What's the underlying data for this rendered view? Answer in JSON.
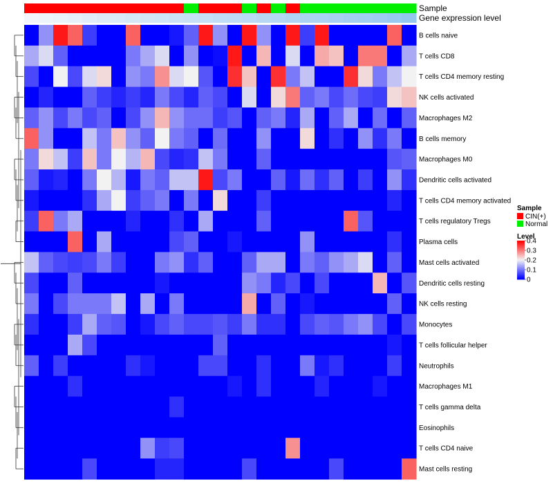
{
  "chart_data": {
    "type": "heatmap",
    "title": "",
    "annotation_tracks": [
      "Sample",
      "Gene expression level"
    ],
    "sample_groups": [
      "CIN(+)",
      "CIN(+)",
      "CIN(+)",
      "CIN(+)",
      "CIN(+)",
      "CIN(+)",
      "CIN(+)",
      "CIN(+)",
      "CIN(+)",
      "CIN(+)",
      "CIN(+)",
      "Normal",
      "CIN(+)",
      "CIN(+)",
      "CIN(+)",
      "Normal",
      "CIN(+)",
      "Normal",
      "CIN(+)",
      "Normal",
      "Normal",
      "Normal",
      "Normal",
      "Normal",
      "Normal",
      "Normal",
      "Normal"
    ],
    "expression_level": [
      0.02,
      0.06,
      0.09,
      0.13,
      0.17,
      0.21,
      0.24,
      0.28,
      0.32,
      0.35,
      0.38,
      0.41,
      0.44,
      0.47,
      0.5,
      0.53,
      0.56,
      0.59,
      0.62,
      0.65,
      0.68,
      0.71,
      0.74,
      0.77,
      0.8,
      0.84,
      0.88
    ],
    "rows": [
      "B cells naive",
      "T cells CD8",
      "T cells CD4 memory resting",
      "NK cells activated",
      "Macrophages M2",
      "B cells memory",
      "Macrophages M0",
      "Dendritic cells activated",
      "T cells CD4 memory activated",
      "T cells regulatory  Tregs",
      "Plasma cells",
      "Mast cells activated",
      "Dendritic cells resting",
      "NK cells resting",
      "Monocytes",
      "T cells follicular helper",
      "Neutrophils",
      "Macrophages M1",
      "T cells gamma delta",
      "Eosinophils",
      "T cells CD4 naive",
      "Mast cells resting"
    ],
    "values": [
      [
        0.0,
        0.12,
        0.38,
        0.32,
        0.05,
        0.0,
        0.0,
        0.32,
        0.0,
        0.0,
        0.02,
        0.08,
        0.38,
        0.12,
        0.0,
        0.38,
        0.12,
        0.0,
        0.38,
        0.05,
        0.38,
        0.0,
        0.0,
        0.0,
        0.0,
        0.32,
        0.0
      ],
      [
        0.14,
        0.18,
        0.08,
        0.0,
        0.0,
        0.0,
        0.0,
        0.1,
        0.14,
        0.18,
        0.0,
        0.12,
        0.0,
        0.01,
        0.38,
        0.0,
        0.25,
        0.0,
        0.18,
        0.0,
        0.26,
        0.24,
        0.0,
        0.3,
        0.3,
        0.0,
        0.14
      ],
      [
        0.06,
        0.0,
        0.2,
        0.06,
        0.18,
        0.22,
        0.0,
        0.12,
        0.1,
        0.28,
        0.18,
        0.2,
        0.07,
        0.0,
        0.36,
        0.24,
        0.0,
        0.36,
        0.1,
        0.16,
        0.0,
        0.0,
        0.36,
        0.22,
        0.1,
        0.16,
        0.2
      ],
      [
        0.0,
        0.03,
        0.0,
        0.0,
        0.08,
        0.05,
        0.03,
        0.05,
        0.03,
        0.1,
        0.06,
        0.03,
        0.08,
        0.06,
        0.0,
        0.18,
        0.0,
        0.22,
        0.3,
        0.08,
        0.1,
        0.06,
        0.09,
        0.06,
        0.05,
        0.22,
        0.24
      ],
      [
        0.08,
        0.12,
        0.06,
        0.1,
        0.06,
        0.08,
        0.0,
        0.06,
        0.12,
        0.25,
        0.12,
        0.09,
        0.09,
        0.05,
        0.07,
        0.0,
        0.08,
        0.1,
        0.03,
        0.14,
        0.0,
        0.08,
        0.14,
        0.0,
        0.09,
        0.0,
        0.08
      ],
      [
        0.32,
        0.12,
        0.0,
        0.0,
        0.16,
        0.1,
        0.24,
        0.12,
        0.08,
        0.2,
        0.1,
        0.08,
        0.0,
        0.09,
        0.0,
        0.0,
        0.12,
        0.0,
        0.0,
        0.22,
        0.0,
        0.04,
        0.0,
        0.12,
        0.04,
        0.1,
        0.0
      ],
      [
        0.1,
        0.22,
        0.16,
        0.05,
        0.24,
        0.1,
        0.2,
        0.15,
        0.25,
        0.06,
        0.03,
        0.04,
        0.16,
        0.1,
        0.0,
        0.0,
        0.08,
        0.0,
        0.0,
        0.0,
        0.0,
        0.0,
        0.0,
        0.0,
        0.0,
        0.07,
        0.08
      ],
      [
        0.08,
        0.02,
        0.03,
        0.0,
        0.1,
        0.2,
        0.15,
        0.02,
        0.1,
        0.08,
        0.16,
        0.16,
        0.38,
        0.06,
        0.1,
        0.0,
        0.0,
        0.08,
        0.02,
        0.09,
        0.04,
        0.08,
        0.0,
        0.05,
        0.0,
        0.12,
        0.04
      ],
      [
        0.02,
        0.0,
        0.0,
        0.0,
        0.04,
        0.14,
        0.2,
        0.05,
        0.08,
        0.1,
        0.0,
        0.1,
        0.0,
        0.22,
        0.0,
        0.0,
        0.05,
        0.0,
        0.0,
        0.0,
        0.0,
        0.0,
        0.0,
        0.0,
        0.0,
        0.03,
        0.0
      ],
      [
        0.05,
        0.32,
        0.1,
        0.14,
        0.0,
        0.0,
        0.0,
        0.03,
        0.0,
        0.0,
        0.04,
        0.0,
        0.14,
        0.0,
        0.0,
        0.0,
        0.08,
        0.0,
        0.0,
        0.0,
        0.0,
        0.0,
        0.32,
        0.07,
        0.0,
        0.0,
        0.0
      ],
      [
        0.0,
        0.0,
        0.0,
        0.32,
        0.0,
        0.14,
        0.0,
        0.0,
        0.0,
        0.0,
        0.06,
        0.08,
        0.0,
        0.0,
        0.02,
        0.0,
        0.0,
        0.0,
        0.0,
        0.12,
        0.0,
        0.0,
        0.0,
        0.0,
        0.0,
        0.04,
        0.0
      ],
      [
        0.16,
        0.08,
        0.06,
        0.05,
        0.06,
        0.1,
        0.05,
        0.0,
        0.0,
        0.1,
        0.12,
        0.04,
        0.08,
        0.0,
        0.0,
        0.08,
        0.14,
        0.14,
        0.0,
        0.1,
        0.08,
        0.12,
        0.14,
        0.18,
        0.0,
        0.08,
        0.0
      ],
      [
        0.06,
        0.0,
        0.0,
        0.08,
        0.0,
        0.0,
        0.0,
        0.0,
        0.0,
        0.02,
        0.0,
        0.0,
        0.0,
        0.0,
        0.0,
        0.12,
        0.1,
        0.03,
        0.06,
        0.0,
        0.06,
        0.0,
        0.0,
        0.0,
        0.25,
        0.0,
        0.07
      ],
      [
        0.1,
        0.0,
        0.06,
        0.1,
        0.1,
        0.1,
        0.16,
        0.0,
        0.14,
        0.0,
        0.1,
        0.0,
        0.0,
        0.0,
        0.0,
        0.26,
        0.0,
        0.08,
        0.0,
        0.02,
        0.0,
        0.0,
        0.0,
        0.0,
        0.0,
        0.08,
        0.0
      ],
      [
        0.04,
        0.0,
        0.0,
        0.05,
        0.14,
        0.08,
        0.07,
        0.0,
        0.02,
        0.06,
        0.08,
        0.06,
        0.06,
        0.07,
        0.05,
        0.1,
        0.04,
        0.04,
        0.0,
        0.06,
        0.08,
        0.07,
        0.1,
        0.12,
        0.06,
        0.0,
        0.06
      ],
      [
        0.0,
        0.0,
        0.0,
        0.14,
        0.06,
        0.0,
        0.0,
        0.0,
        0.0,
        0.0,
        0.0,
        0.0,
        0.0,
        0.08,
        0.0,
        0.0,
        0.0,
        0.0,
        0.0,
        0.0,
        0.0,
        0.0,
        0.0,
        0.0,
        0.0,
        0.02,
        0.0
      ],
      [
        0.08,
        0.0,
        0.05,
        0.0,
        0.0,
        0.0,
        0.0,
        0.04,
        0.02,
        0.0,
        0.0,
        0.0,
        0.06,
        0.06,
        0.0,
        0.0,
        0.04,
        0.0,
        0.0,
        0.1,
        0.02,
        0.04,
        0.0,
        0.0,
        0.0,
        0.05,
        0.0
      ],
      [
        0.0,
        0.0,
        0.0,
        0.04,
        0.0,
        0.0,
        0.0,
        0.0,
        0.0,
        0.0,
        0.0,
        0.0,
        0.0,
        0.0,
        0.02,
        0.0,
        0.04,
        0.0,
        0.0,
        0.0,
        0.03,
        0.0,
        0.0,
        0.0,
        0.02,
        0.0,
        0.0
      ],
      [
        0.0,
        0.0,
        0.0,
        0.0,
        0.0,
        0.0,
        0.0,
        0.0,
        0.0,
        0.0,
        0.04,
        0.0,
        0.0,
        0.0,
        0.0,
        0.0,
        0.0,
        0.0,
        0.0,
        0.0,
        0.0,
        0.0,
        0.0,
        0.0,
        0.0,
        0.0,
        0.0
      ],
      [
        0.0,
        0.0,
        0.0,
        0.0,
        0.0,
        0.0,
        0.0,
        0.0,
        0.0,
        0.0,
        0.0,
        0.0,
        0.0,
        0.0,
        0.0,
        0.0,
        0.0,
        0.0,
        0.0,
        0.0,
        0.0,
        0.0,
        0.0,
        0.0,
        0.0,
        0.0,
        0.0
      ],
      [
        0.0,
        0.0,
        0.0,
        0.0,
        0.0,
        0.0,
        0.0,
        0.0,
        0.12,
        0.05,
        0.06,
        0.0,
        0.0,
        0.0,
        0.0,
        0.0,
        0.0,
        0.0,
        0.28,
        0.0,
        0.0,
        0.0,
        0.0,
        0.0,
        0.0,
        0.0,
        0.0
      ],
      [
        0.0,
        0.0,
        0.0,
        0.0,
        0.06,
        0.0,
        0.0,
        0.0,
        0.0,
        0.03,
        0.03,
        0.0,
        0.0,
        0.0,
        0.0,
        0.06,
        0.0,
        0.0,
        0.0,
        0.0,
        0.0,
        0.06,
        0.0,
        0.0,
        0.0,
        0.0,
        0.32
      ]
    ],
    "color_scale": {
      "min": 0,
      "max": 0.4,
      "low": "#0000ff",
      "mid": "#f2f2f2",
      "high": "#ff0000",
      "mid_value": 0.2
    },
    "group_colors": {
      "CIN(+)": "#ff0000",
      "Normal": "#00ee00"
    },
    "expression_track_colors": {
      "low": "#f4f7fb",
      "high": "#87c0ef"
    },
    "legend": {
      "sample_title": "Sample",
      "sample_items": [
        "CIN(+)",
        "Normal"
      ],
      "level_title": "Level",
      "level_ticks": [
        "0.4",
        "0.3",
        "0.2",
        "0.1",
        "0"
      ],
      "level_tick_values": [
        0.4,
        0.3,
        0.2,
        0.1,
        0
      ],
      "placement": "right"
    }
  }
}
